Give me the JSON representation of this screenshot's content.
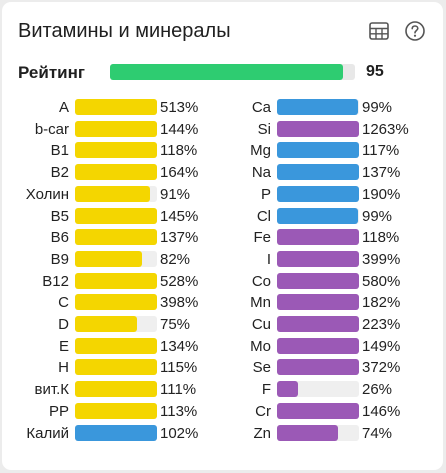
{
  "header": {
    "title": "Витамины и минералы",
    "icons": [
      "table-icon",
      "help-icon"
    ]
  },
  "rating": {
    "label": "Рейтинг",
    "value": "95",
    "fraction": 0.95,
    "color": "#2ecc71"
  },
  "colors": {
    "vitamin": "#f4d600",
    "mineral_blue": "#3a97dc",
    "mineral_purple": "#9b59b6",
    "track": "#efefef"
  },
  "left": [
    {
      "label": "A",
      "value": "513%",
      "fill": 1.0,
      "color": "#f4d600"
    },
    {
      "label": "b-car",
      "value": "144%",
      "fill": 1.0,
      "color": "#f4d600"
    },
    {
      "label": "B1",
      "value": "118%",
      "fill": 1.0,
      "color": "#f4d600"
    },
    {
      "label": "B2",
      "value": "164%",
      "fill": 1.0,
      "color": "#f4d600"
    },
    {
      "label": "Холин",
      "value": "91%",
      "fill": 0.91,
      "color": "#f4d600"
    },
    {
      "label": "B5",
      "value": "145%",
      "fill": 1.0,
      "color": "#f4d600"
    },
    {
      "label": "B6",
      "value": "137%",
      "fill": 1.0,
      "color": "#f4d600"
    },
    {
      "label": "B9",
      "value": "82%",
      "fill": 0.82,
      "color": "#f4d600"
    },
    {
      "label": "B12",
      "value": "528%",
      "fill": 1.0,
      "color": "#f4d600"
    },
    {
      "label": "C",
      "value": "398%",
      "fill": 1.0,
      "color": "#f4d600"
    },
    {
      "label": "D",
      "value": "75%",
      "fill": 0.75,
      "color": "#f4d600"
    },
    {
      "label": "E",
      "value": "134%",
      "fill": 1.0,
      "color": "#f4d600"
    },
    {
      "label": "H",
      "value": "115%",
      "fill": 1.0,
      "color": "#f4d600"
    },
    {
      "label": "вит.К",
      "value": "111%",
      "fill": 1.0,
      "color": "#f4d600"
    },
    {
      "label": "PP",
      "value": "113%",
      "fill": 1.0,
      "color": "#f4d600"
    },
    {
      "label": "Калий",
      "value": "102%",
      "fill": 1.0,
      "color": "#3a97dc"
    }
  ],
  "right": [
    {
      "label": "Ca",
      "value": "99%",
      "fill": 0.99,
      "color": "#3a97dc"
    },
    {
      "label": "Si",
      "value": "1263%",
      "fill": 1.0,
      "color": "#9b59b6"
    },
    {
      "label": "Mg",
      "value": "117%",
      "fill": 1.0,
      "color": "#3a97dc"
    },
    {
      "label": "Na",
      "value": "137%",
      "fill": 1.0,
      "color": "#3a97dc"
    },
    {
      "label": "P",
      "value": "190%",
      "fill": 1.0,
      "color": "#3a97dc"
    },
    {
      "label": "Cl",
      "value": "99%",
      "fill": 0.99,
      "color": "#3a97dc"
    },
    {
      "label": "Fe",
      "value": "118%",
      "fill": 1.0,
      "color": "#9b59b6"
    },
    {
      "label": "I",
      "value": "399%",
      "fill": 1.0,
      "color": "#9b59b6"
    },
    {
      "label": "Co",
      "value": "580%",
      "fill": 1.0,
      "color": "#9b59b6"
    },
    {
      "label": "Mn",
      "value": "182%",
      "fill": 1.0,
      "color": "#9b59b6"
    },
    {
      "label": "Cu",
      "value": "223%",
      "fill": 1.0,
      "color": "#9b59b6"
    },
    {
      "label": "Mo",
      "value": "149%",
      "fill": 1.0,
      "color": "#9b59b6"
    },
    {
      "label": "Se",
      "value": "372%",
      "fill": 1.0,
      "color": "#9b59b6"
    },
    {
      "label": "F",
      "value": "26%",
      "fill": 0.26,
      "color": "#9b59b6"
    },
    {
      "label": "Cr",
      "value": "146%",
      "fill": 1.0,
      "color": "#9b59b6"
    },
    {
      "label": "Zn",
      "value": "74%",
      "fill": 0.74,
      "color": "#9b59b6"
    }
  ]
}
